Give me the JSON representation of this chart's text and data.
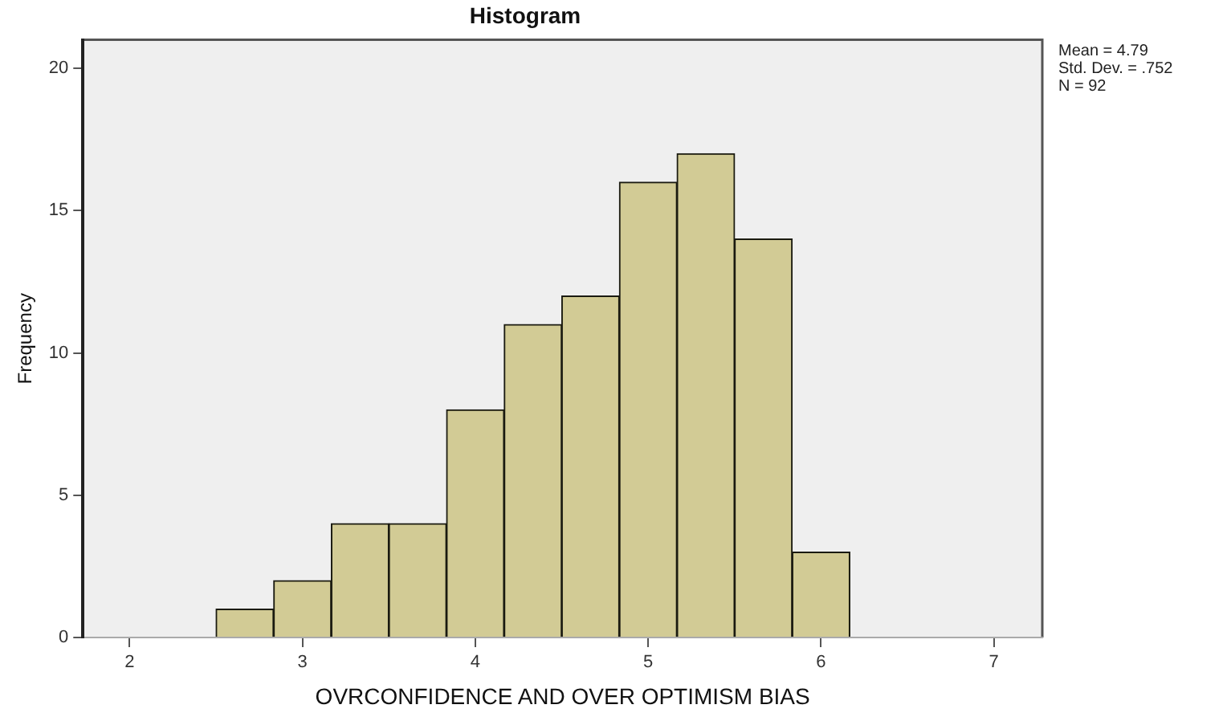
{
  "chart_data": {
    "type": "histogram",
    "title": "Histogram",
    "xlabel": "OVRCONFIDENCE AND OVER OPTIMISM BIAS",
    "ylabel": "Frequency",
    "bins": [
      2.5,
      2.833,
      3.167,
      3.5,
      3.833,
      4.167,
      4.5,
      4.833,
      5.167,
      5.5,
      5.833,
      6.167
    ],
    "values": [
      1,
      2,
      4,
      4,
      8,
      11,
      12,
      16,
      17,
      14,
      3
    ],
    "color": "#d2cb95",
    "xlim": [
      1.73,
      7.28
    ],
    "xticks": [
      2,
      3,
      4,
      5,
      6,
      7
    ],
    "ylim": [
      0,
      21
    ],
    "yticks": [
      0,
      5,
      10,
      15,
      20
    ],
    "annotations": [
      "Mean = 4.79",
      "Std. Dev. = .752",
      "N = 92"
    ]
  }
}
